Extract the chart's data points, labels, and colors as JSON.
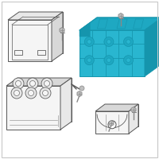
{
  "background_color": "#ffffff",
  "border_color": "#c8c8c8",
  "highlight_color": "#29b6d0",
  "highlight_mid": "#1ea8c2",
  "highlight_dark": "#1595ad",
  "part_fill": "#f5f5f5",
  "part_mid": "#e8e8e8",
  "part_dark": "#d8d8d8",
  "line_color": "#555555",
  "line_thin": "#888888",
  "screw_fill": "#c0c0c0",
  "screw_dark": "#888888",
  "figsize": [
    2.0,
    2.0
  ],
  "dpi": 100
}
